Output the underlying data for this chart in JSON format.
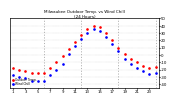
{
  "title": "Milwaukee Outdoor Temp. vs Wind Chill",
  "subtitle": "(24 Hours)",
  "legend": [
    "Outdoor Temp.",
    "Wind Chill"
  ],
  "temp_x": [
    1,
    2,
    3,
    4,
    5,
    6,
    7,
    8,
    9,
    10,
    11,
    12,
    13,
    14,
    15,
    16,
    17,
    18,
    19,
    20,
    21,
    22,
    23,
    24
  ],
  "temp_y": [
    -18,
    -20,
    -22,
    -25,
    -25,
    -24,
    -18,
    -10,
    -2,
    8,
    18,
    28,
    35,
    40,
    38,
    30,
    20,
    10,
    2,
    -5,
    -10,
    -15,
    -18,
    -16
  ],
  "wc_x": [
    1,
    2,
    3,
    4,
    5,
    6,
    7,
    8,
    9,
    10,
    11,
    12,
    13,
    14,
    15,
    16,
    17,
    18,
    19,
    20,
    21,
    22,
    23,
    24
  ],
  "wc_y": [
    -28,
    -30,
    -32,
    -36,
    -36,
    -35,
    -28,
    -20,
    -12,
    2,
    12,
    22,
    30,
    35,
    33,
    25,
    15,
    5,
    -5,
    -12,
    -18,
    -22,
    -26,
    -24
  ],
  "ylim": [
    -45,
    50
  ],
  "xlim": [
    0.5,
    24.5
  ],
  "xticks": [
    1,
    3,
    5,
    7,
    9,
    11,
    13,
    15,
    17,
    19,
    21,
    23
  ],
  "yticks": [
    -40,
    -30,
    -20,
    -10,
    0,
    10,
    20,
    30,
    40,
    50
  ],
  "ytick_labels": [
    "-40",
    "-30",
    "-20",
    "-10",
    "0",
    "10",
    "20",
    "30",
    "40",
    "50"
  ],
  "vlines": [
    6,
    12,
    18,
    24
  ],
  "temp_color": "#ff0000",
  "wc_color": "#0000ff",
  "bg_color": "#ffffff",
  "grid_color": "#777777",
  "title_color": "#000000",
  "marker_size": 1.8
}
